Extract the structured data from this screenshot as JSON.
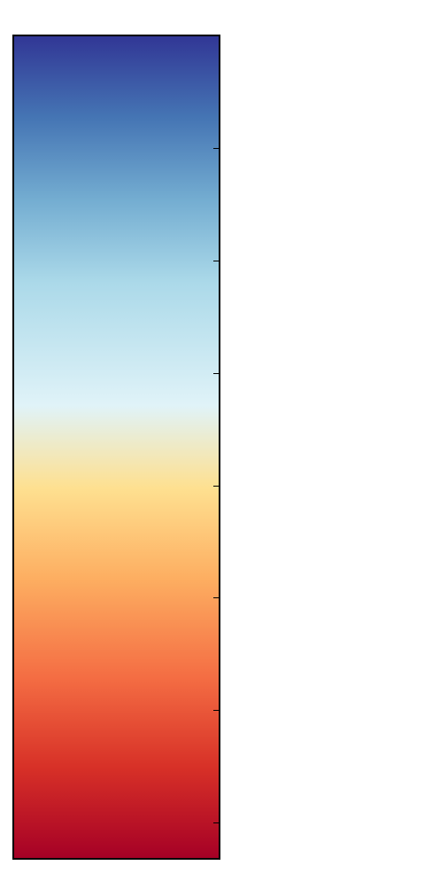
{
  "chart_data": {
    "type": "colorbar",
    "colormap": "RdYlBu",
    "orientation": "vertical",
    "direction": "blue-top-red-bottom",
    "tick_count": 7,
    "tick_labels": [],
    "tick_side": "right",
    "gradient_stops": [
      {
        "offset": 0.0,
        "color": "#313695"
      },
      {
        "offset": 0.1,
        "color": "#4575b4"
      },
      {
        "offset": 0.2,
        "color": "#74add1"
      },
      {
        "offset": 0.3,
        "color": "#abd9e9"
      },
      {
        "offset": 0.45,
        "color": "#e0f3f8"
      },
      {
        "offset": 0.55,
        "color": "#fee090"
      },
      {
        "offset": 0.66,
        "color": "#fdae61"
      },
      {
        "offset": 0.78,
        "color": "#f46d43"
      },
      {
        "offset": 0.89,
        "color": "#d73027"
      },
      {
        "offset": 1.0,
        "color": "#a50026"
      }
    ],
    "frame_color": "#000000"
  }
}
